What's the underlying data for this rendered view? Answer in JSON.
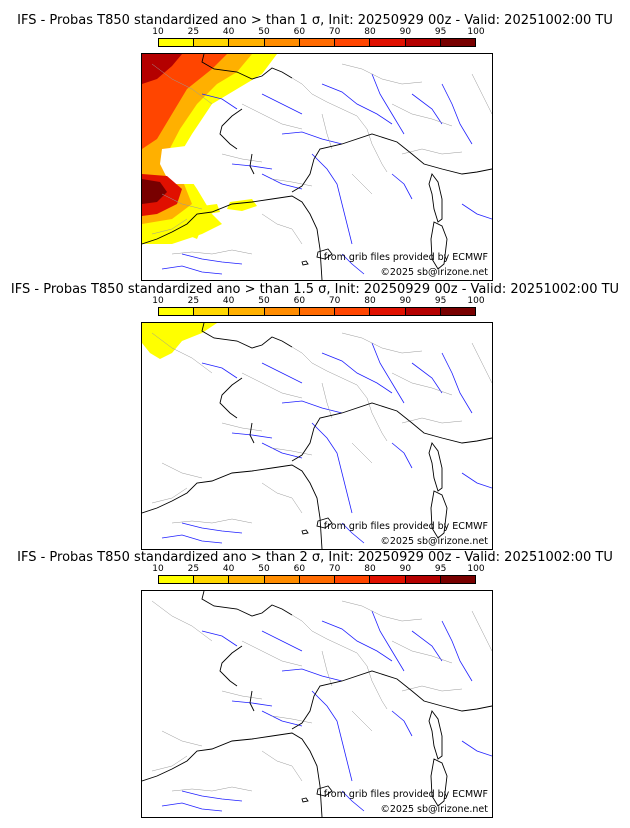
{
  "colorbar": {
    "ticks": [
      "10",
      "25",
      "40",
      "50",
      "60",
      "70",
      "80",
      "90",
      "95",
      "100"
    ],
    "colors": [
      "#ffff00",
      "#ffd700",
      "#ffb000",
      "#ff8c00",
      "#ff6a00",
      "#ff4500",
      "#e01000",
      "#b40000",
      "#780000"
    ]
  },
  "panels": [
    {
      "title": "IFS - Probas T850  standardized ano > than 1 σ, Init: 20250929 00z - Valid: 20251002:00 TU",
      "credit_source": "from grib files provided by ECMWF",
      "credit_copyright": "©2025 sb@irizone.net"
    },
    {
      "title": "IFS - Probas T850  standardized ano > than 1.5 σ, Init: 20250929 00z - Valid: 20251002:00 TU",
      "credit_source": "from grib files provided by ECMWF",
      "credit_copyright": "©2025 sb@irizone.net"
    },
    {
      "title": "IFS - Probas T850  standardized ano > than 2 σ, Init: 20250929 00z - Valid: 20251002:00 TU",
      "credit_source": "from grib files provided by ECMWF",
      "credit_copyright": "©2025 sb@irizone.net"
    }
  ]
}
